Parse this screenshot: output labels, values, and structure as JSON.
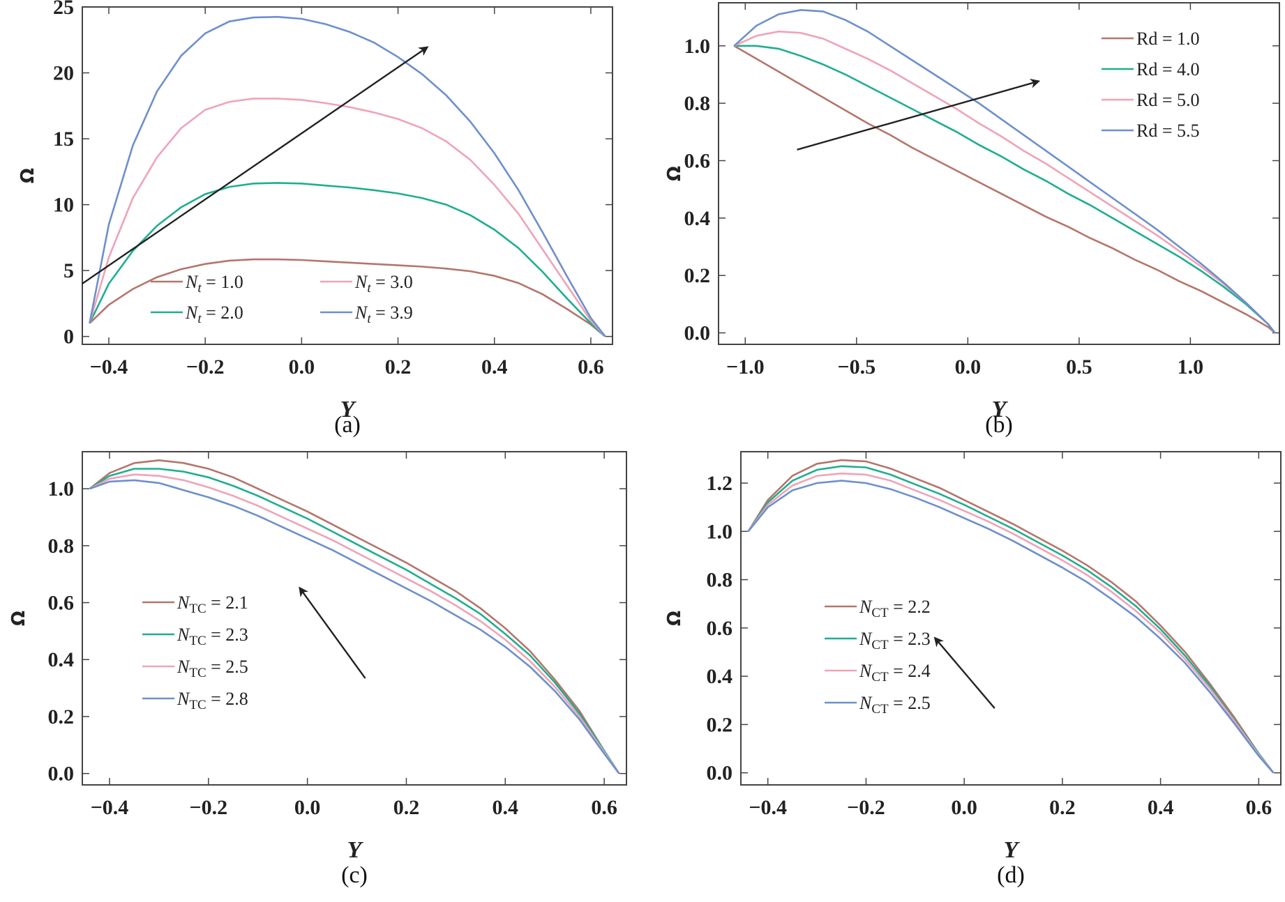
{
  "chart_data": [
    {
      "type": "line",
      "panel_label": "(a)",
      "xlabel": "Y",
      "ylabel": "Ω",
      "xlim": [
        -0.455,
        0.645
      ],
      "ylim": [
        -0.6,
        25.0
      ],
      "xticks": [
        -0.4,
        -0.2,
        0.0,
        0.2,
        0.4,
        0.6
      ],
      "xtick_labels": [
        "−0.4",
        "−0.2",
        "0.0",
        "0.2",
        "0.4",
        "0.6"
      ],
      "yticks": [
        0,
        5,
        10,
        15,
        20,
        25
      ],
      "ytick_labels": [
        "0",
        "5",
        "10",
        "15",
        "20",
        "25"
      ],
      "x": [
        -0.44,
        -0.4,
        -0.35,
        -0.3,
        -0.25,
        -0.2,
        -0.15,
        -0.1,
        -0.05,
        0.0,
        0.05,
        0.1,
        0.15,
        0.2,
        0.25,
        0.3,
        0.35,
        0.4,
        0.45,
        0.5,
        0.55,
        0.6,
        0.63
      ],
      "series": [
        {
          "name": "Nt = 1.0",
          "color": "#b5756b",
          "values": [
            1.0,
            2.4,
            3.6,
            4.5,
            5.1,
            5.5,
            5.75,
            5.85,
            5.85,
            5.8,
            5.7,
            5.6,
            5.5,
            5.4,
            5.3,
            5.15,
            4.95,
            4.6,
            4.05,
            3.2,
            2.1,
            0.9,
            0.0
          ]
        },
        {
          "name": "Nt = 2.0",
          "color": "#1fae8f",
          "values": [
            1.0,
            4.0,
            6.5,
            8.4,
            9.8,
            10.8,
            11.35,
            11.6,
            11.65,
            11.6,
            11.45,
            11.3,
            11.1,
            10.85,
            10.5,
            10.0,
            9.2,
            8.1,
            6.7,
            4.9,
            2.9,
            1.0,
            0.0
          ]
        },
        {
          "name": "Nt = 3.0",
          "color": "#f0a3b6",
          "values": [
            1.0,
            6.0,
            10.5,
            13.6,
            15.8,
            17.2,
            17.8,
            18.05,
            18.05,
            17.95,
            17.7,
            17.4,
            17.0,
            16.5,
            15.8,
            14.8,
            13.4,
            11.5,
            9.3,
            6.6,
            3.9,
            1.2,
            0.0
          ]
        },
        {
          "name": "Nt = 3.9",
          "color": "#6d8fce",
          "values": [
            1.0,
            8.5,
            14.5,
            18.6,
            21.3,
            23.0,
            23.9,
            24.2,
            24.25,
            24.1,
            23.7,
            23.1,
            22.3,
            21.2,
            19.9,
            18.3,
            16.3,
            13.9,
            11.1,
            7.9,
            4.6,
            1.4,
            0.0
          ]
        }
      ],
      "legend": [
        {
          "prefix": "N",
          "sub": "t",
          "value": " = 1.0"
        },
        {
          "prefix": "N",
          "sub": "t",
          "value": " = 2.0"
        },
        {
          "prefix": "N",
          "sub": "t",
          "value": " = 3.0"
        },
        {
          "prefix": "N",
          "sub": "t",
          "value": " = 3.9"
        }
      ],
      "legend_position": "bottom-center",
      "arrow_direction": "increasing"
    },
    {
      "type": "line",
      "panel_label": "(b)",
      "xlabel": "Y",
      "ylabel": "Ω",
      "xlim": [
        -1.12,
        1.4
      ],
      "ylim": [
        -0.04,
        1.15
      ],
      "xticks": [
        -1.0,
        -0.5,
        0.0,
        0.5,
        1.0
      ],
      "xtick_labels": [
        "−1.0",
        "−0.5",
        "0.0",
        "0.5",
        "1.0"
      ],
      "yticks": [
        0.0,
        0.2,
        0.4,
        0.6,
        0.8,
        1.0
      ],
      "ytick_labels": [
        "0.0",
        "0.2",
        "0.4",
        "0.6",
        "0.8",
        "1.0"
      ],
      "x": [
        -1.05,
        -0.95,
        -0.85,
        -0.75,
        -0.65,
        -0.55,
        -0.45,
        -0.35,
        -0.25,
        -0.15,
        -0.05,
        0.05,
        0.15,
        0.25,
        0.35,
        0.45,
        0.55,
        0.65,
        0.75,
        0.85,
        0.95,
        1.05,
        1.15,
        1.25,
        1.35,
        1.38
      ],
      "series": [
        {
          "name": "Rd = 1.0",
          "color": "#b5756b",
          "values": [
            1.0,
            0.955,
            0.91,
            0.865,
            0.82,
            0.775,
            0.73,
            0.69,
            0.645,
            0.605,
            0.565,
            0.525,
            0.485,
            0.445,
            0.405,
            0.37,
            0.33,
            0.295,
            0.255,
            0.22,
            0.18,
            0.145,
            0.105,
            0.065,
            0.02,
            0.0
          ]
        },
        {
          "name": "Rd = 4.0",
          "color": "#1fae8f",
          "values": [
            1.0,
            1.0,
            0.99,
            0.965,
            0.935,
            0.9,
            0.86,
            0.82,
            0.78,
            0.74,
            0.7,
            0.655,
            0.615,
            0.57,
            0.53,
            0.485,
            0.445,
            0.4,
            0.355,
            0.31,
            0.265,
            0.215,
            0.16,
            0.1,
            0.03,
            0.0
          ]
        },
        {
          "name": "Rd = 5.0",
          "color": "#f0a3b6",
          "values": [
            1.0,
            1.035,
            1.05,
            1.045,
            1.025,
            0.99,
            0.955,
            0.915,
            0.87,
            0.825,
            0.78,
            0.73,
            0.685,
            0.635,
            0.59,
            0.54,
            0.49,
            0.44,
            0.39,
            0.34,
            0.285,
            0.23,
            0.17,
            0.105,
            0.03,
            0.0
          ]
        },
        {
          "name": "Rd = 5.5",
          "color": "#6d8fce",
          "values": [
            1.0,
            1.07,
            1.11,
            1.125,
            1.12,
            1.09,
            1.05,
            1.0,
            0.95,
            0.9,
            0.85,
            0.8,
            0.745,
            0.69,
            0.635,
            0.58,
            0.525,
            0.47,
            0.415,
            0.36,
            0.3,
            0.24,
            0.175,
            0.105,
            0.03,
            0.0
          ]
        }
      ],
      "legend": [
        {
          "prefix": "Rd",
          "sub": "",
          "value": " = 1.0"
        },
        {
          "prefix": "Rd",
          "sub": "",
          "value": " = 4.0"
        },
        {
          "prefix": "Rd",
          "sub": "",
          "value": " = 5.0"
        },
        {
          "prefix": "Rd",
          "sub": "",
          "value": " = 5.5"
        }
      ],
      "legend_position": "top-right",
      "arrow_direction": "increasing"
    },
    {
      "type": "line",
      "panel_label": "(c)",
      "xlabel": "Y",
      "ylabel": "Ω",
      "xlim": [
        -0.455,
        0.645
      ],
      "ylim": [
        -0.04,
        1.13
      ],
      "xticks": [
        -0.4,
        -0.2,
        0.0,
        0.2,
        0.4,
        0.6
      ],
      "xtick_labels": [
        "−0.4",
        "−0.2",
        "0.0",
        "0.2",
        "0.4",
        "0.6"
      ],
      "yticks": [
        0.0,
        0.2,
        0.4,
        0.6,
        0.8,
        1.0
      ],
      "ytick_labels": [
        "0.0",
        "0.2",
        "0.4",
        "0.6",
        "0.8",
        "1.0"
      ],
      "x": [
        -0.44,
        -0.4,
        -0.35,
        -0.3,
        -0.25,
        -0.2,
        -0.15,
        -0.1,
        -0.05,
        0.0,
        0.05,
        0.1,
        0.15,
        0.2,
        0.25,
        0.3,
        0.35,
        0.4,
        0.45,
        0.5,
        0.55,
        0.6,
        0.63
      ],
      "series": [
        {
          "name": "NTC = 2.1",
          "color": "#b5756b",
          "values": [
            1.0,
            1.055,
            1.09,
            1.1,
            1.09,
            1.07,
            1.04,
            1.0,
            0.96,
            0.92,
            0.875,
            0.83,
            0.785,
            0.74,
            0.69,
            0.64,
            0.58,
            0.51,
            0.43,
            0.33,
            0.22,
            0.08,
            0.0
          ]
        },
        {
          "name": "NTC = 2.3",
          "color": "#1fae8f",
          "values": [
            1.0,
            1.045,
            1.07,
            1.07,
            1.06,
            1.04,
            1.01,
            0.975,
            0.935,
            0.895,
            0.85,
            0.805,
            0.76,
            0.715,
            0.665,
            0.615,
            0.56,
            0.49,
            0.415,
            0.32,
            0.21,
            0.08,
            0.0
          ]
        },
        {
          "name": "NTC = 2.5",
          "color": "#f0a3b6",
          "values": [
            1.0,
            1.035,
            1.05,
            1.045,
            1.03,
            1.005,
            0.975,
            0.94,
            0.9,
            0.86,
            0.82,
            0.775,
            0.73,
            0.685,
            0.64,
            0.59,
            0.535,
            0.47,
            0.395,
            0.305,
            0.2,
            0.075,
            0.0
          ]
        },
        {
          "name": "NTC = 2.8",
          "color": "#6d8fce",
          "values": [
            1.0,
            1.025,
            1.03,
            1.02,
            0.995,
            0.97,
            0.94,
            0.905,
            0.865,
            0.825,
            0.785,
            0.74,
            0.695,
            0.65,
            0.605,
            0.555,
            0.505,
            0.445,
            0.375,
            0.29,
            0.19,
            0.07,
            0.0
          ]
        }
      ],
      "legend": [
        {
          "prefix": "N",
          "sub": "TC",
          "value": " = 2.1"
        },
        {
          "prefix": "N",
          "sub": "TC",
          "value": " = 2.3"
        },
        {
          "prefix": "N",
          "sub": "TC",
          "value": " = 2.5"
        },
        {
          "prefix": "N",
          "sub": "TC",
          "value": " = 2.8"
        }
      ],
      "legend_position": "center-left",
      "arrow_direction": "decreasing"
    },
    {
      "type": "line",
      "panel_label": "(d)",
      "xlabel": "Y",
      "ylabel": "Ω",
      "xlim": [
        -0.455,
        0.645
      ],
      "ylim": [
        -0.05,
        1.33
      ],
      "xticks": [
        -0.4,
        -0.2,
        0.0,
        0.2,
        0.4,
        0.6
      ],
      "xtick_labels": [
        "−0.4",
        "−0.2",
        "0.0",
        "0.2",
        "0.4",
        "0.6"
      ],
      "yticks": [
        0.0,
        0.2,
        0.4,
        0.6,
        0.8,
        1.0,
        1.2
      ],
      "ytick_labels": [
        "0.0",
        "0.2",
        "0.4",
        "0.6",
        "0.8",
        "1.0",
        "1.2"
      ],
      "x": [
        -0.44,
        -0.4,
        -0.35,
        -0.3,
        -0.25,
        -0.2,
        -0.15,
        -0.1,
        -0.05,
        0.0,
        0.05,
        0.1,
        0.15,
        0.2,
        0.25,
        0.3,
        0.35,
        0.4,
        0.45,
        0.5,
        0.55,
        0.6,
        0.63
      ],
      "series": [
        {
          "name": "NCT = 2.2",
          "color": "#b5756b",
          "values": [
            1.0,
            1.13,
            1.23,
            1.28,
            1.295,
            1.29,
            1.26,
            1.22,
            1.18,
            1.13,
            1.08,
            1.03,
            0.975,
            0.92,
            0.86,
            0.79,
            0.71,
            0.61,
            0.5,
            0.37,
            0.23,
            0.08,
            0.0
          ]
        },
        {
          "name": "NCT = 2.3",
          "color": "#1fae8f",
          "values": [
            1.0,
            1.12,
            1.21,
            1.255,
            1.27,
            1.265,
            1.235,
            1.195,
            1.155,
            1.11,
            1.06,
            1.01,
            0.955,
            0.9,
            0.84,
            0.77,
            0.69,
            0.595,
            0.485,
            0.36,
            0.22,
            0.08,
            0.0
          ]
        },
        {
          "name": "NCT = 2.4",
          "color": "#f0a3b6",
          "values": [
            1.0,
            1.11,
            1.19,
            1.23,
            1.24,
            1.235,
            1.21,
            1.17,
            1.13,
            1.085,
            1.04,
            0.99,
            0.935,
            0.88,
            0.82,
            0.75,
            0.67,
            0.58,
            0.47,
            0.35,
            0.215,
            0.075,
            0.0
          ]
        },
        {
          "name": "NCT = 2.5",
          "color": "#6d8fce",
          "values": [
            1.0,
            1.1,
            1.17,
            1.2,
            1.21,
            1.2,
            1.175,
            1.14,
            1.1,
            1.055,
            1.01,
            0.96,
            0.905,
            0.85,
            0.79,
            0.72,
            0.645,
            0.555,
            0.455,
            0.335,
            0.205,
            0.07,
            0.0
          ]
        }
      ],
      "legend": [
        {
          "prefix": "N",
          "sub": "CT",
          "value": " = 2.2"
        },
        {
          "prefix": "N",
          "sub": "CT",
          "value": " = 2.3"
        },
        {
          "prefix": "N",
          "sub": "CT",
          "value": " = 2.4"
        },
        {
          "prefix": "N",
          "sub": "CT",
          "value": " = 2.5"
        }
      ],
      "legend_position": "center-left",
      "arrow_direction": "decreasing"
    }
  ]
}
